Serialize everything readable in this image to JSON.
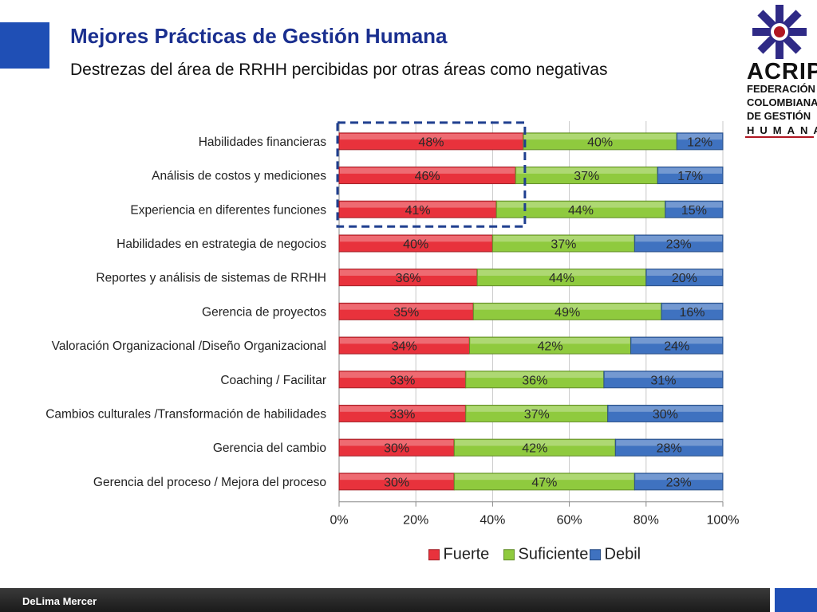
{
  "slide": {
    "title": "Mejores Prácticas de Gestión Humana",
    "subtitle": "Destrezas del área de RRHH percibidas por otras áreas como negativas",
    "footer": "DeLima Mercer",
    "logo": {
      "name": "ACRIP",
      "line1": "FEDERACIÓN",
      "line2": "COLOMBIANA",
      "line3": "DE GESTIÓN",
      "line4": "HUMANA",
      "icon": "acrip-snowflake-icon",
      "colors": {
        "purple": "#2f2a86",
        "red": "#b01622"
      }
    }
  },
  "chart_data": {
    "type": "bar",
    "orientation": "horizontal",
    "stacked": true,
    "categories": [
      "Habilidades financieras",
      "Análisis de costos y mediciones",
      "Experiencia en diferentes funciones",
      "Habilidades en estrategia de negocios",
      "Reportes y análisis de sistemas de RRHH",
      "Gerencia de proyectos",
      "Valoración Organizacional /Diseño Organizacional",
      "Coaching / Facilitar",
      "Cambios culturales /Transformación de habilidades",
      "Gerencia del cambio",
      "Gerencia del proceso / Mejora del proceso"
    ],
    "series": [
      {
        "name": "Fuerte",
        "color": "#e8323c",
        "values": [
          48,
          46,
          41,
          40,
          36,
          35,
          34,
          33,
          33,
          30,
          30
        ]
      },
      {
        "name": "Suficiente",
        "color": "#8fca3e",
        "values": [
          40,
          37,
          44,
          37,
          44,
          49,
          42,
          36,
          37,
          42,
          47
        ]
      },
      {
        "name": "Debil",
        "color": "#3f72c0",
        "values": [
          12,
          17,
          15,
          23,
          20,
          16,
          24,
          31,
          30,
          28,
          23
        ]
      }
    ],
    "value_suffix": "%",
    "xlim": [
      0,
      100
    ],
    "xticks": [
      "0%",
      "20%",
      "40%",
      "60%",
      "80%",
      "100%"
    ],
    "grid": true,
    "legend": "bottom",
    "highlight": {
      "categories": [
        0,
        1,
        2
      ],
      "series": "Fuerte",
      "style": "dashed-box",
      "color": "#1f3f8f"
    }
  }
}
